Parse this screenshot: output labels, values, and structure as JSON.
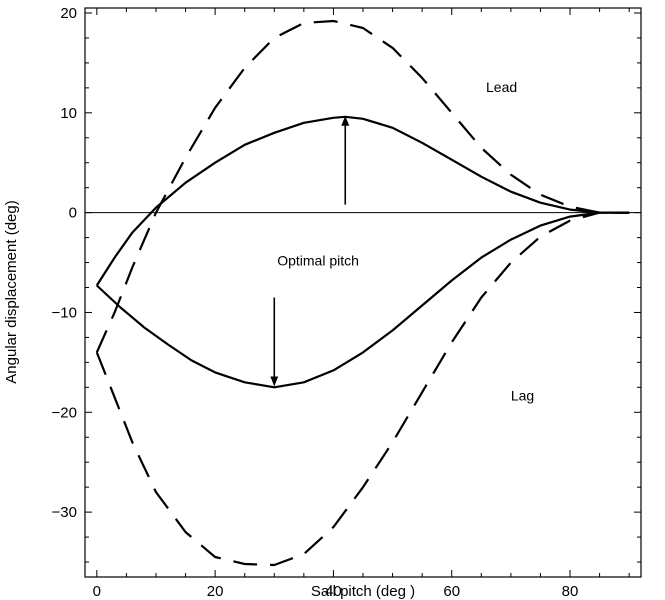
{
  "chart_data": {
    "type": "line",
    "title": "",
    "xlabel": "Sail pitch (deg )",
    "ylabel": "Angular displacement (deg)",
    "xlim": [
      -2,
      92
    ],
    "ylim": [
      -36.5,
      20.5
    ],
    "xticks": [
      0,
      20,
      40,
      60,
      80
    ],
    "yticks": [
      20,
      10,
      0,
      -10,
      -20,
      -30
    ],
    "ytick_labels": [
      "20",
      "10",
      "0",
      "−10",
      "−20",
      "−30"
    ],
    "grid": false,
    "reference_line_y": 0,
    "series": [
      {
        "style": "solid",
        "x": [
          0,
          3,
          6,
          10,
          15,
          20,
          25,
          30,
          35,
          40,
          42,
          45,
          50,
          55,
          60,
          65,
          70,
          75,
          80,
          85,
          87,
          90
        ],
        "y": [
          -7.3,
          -4.5,
          -2.0,
          0.5,
          3.0,
          5.0,
          6.8,
          8.0,
          9.0,
          9.5,
          9.6,
          9.4,
          8.5,
          7.0,
          5.3,
          3.6,
          2.1,
          1.0,
          0.3,
          0.0,
          0.0,
          0.0
        ]
      },
      {
        "style": "solid",
        "x": [
          0,
          4,
          8,
          12,
          16,
          20,
          25,
          30,
          35,
          40,
          45,
          50,
          55,
          60,
          65,
          70,
          75,
          80,
          85,
          87,
          90
        ],
        "y": [
          -7.3,
          -9.5,
          -11.5,
          -13.2,
          -14.8,
          -16.0,
          -17.0,
          -17.5,
          -17.0,
          -15.8,
          -14.0,
          -11.8,
          -9.3,
          -6.8,
          -4.5,
          -2.7,
          -1.3,
          -0.4,
          0.0,
          0.0,
          0.0
        ]
      },
      {
        "style": "dashed",
        "x": [
          0,
          3,
          6,
          10,
          15,
          20,
          25,
          30,
          35,
          40,
          45,
          50,
          55,
          60,
          65,
          70,
          75,
          80,
          85,
          87,
          90
        ],
        "y": [
          -14.0,
          -10.0,
          -5.5,
          0.0,
          5.5,
          10.5,
          14.5,
          17.5,
          19.0,
          19.2,
          18.5,
          16.5,
          13.5,
          10.0,
          6.5,
          3.8,
          1.8,
          0.6,
          0.0,
          0.0,
          0.0
        ]
      },
      {
        "style": "dashed",
        "x": [
          0,
          3,
          6,
          10,
          15,
          20,
          25,
          30,
          35,
          40,
          45,
          50,
          55,
          60,
          65,
          70,
          75,
          80,
          85,
          87,
          90
        ],
        "y": [
          -14.0,
          -18.5,
          -23.0,
          -28.0,
          -32.0,
          -34.5,
          -35.2,
          -35.3,
          -34.2,
          -31.5,
          -27.5,
          -23.0,
          -18.0,
          -13.0,
          -8.5,
          -5.0,
          -2.4,
          -0.8,
          0.0,
          0.0,
          0.0
        ]
      }
    ],
    "annotations": [
      {
        "text": "Lead",
        "x": 65.8,
        "y": 12.1
      },
      {
        "text": "Lag",
        "x": 70.0,
        "y": -18.8
      },
      {
        "text": "Optimal pitch",
        "x": 30.5,
        "y": -5.3
      }
    ],
    "arrows": [
      {
        "from": [
          42,
          0.8
        ],
        "to": [
          42,
          9.6
        ]
      },
      {
        "from": [
          30,
          -8.5
        ],
        "to": [
          30,
          -17.3
        ]
      }
    ]
  }
}
